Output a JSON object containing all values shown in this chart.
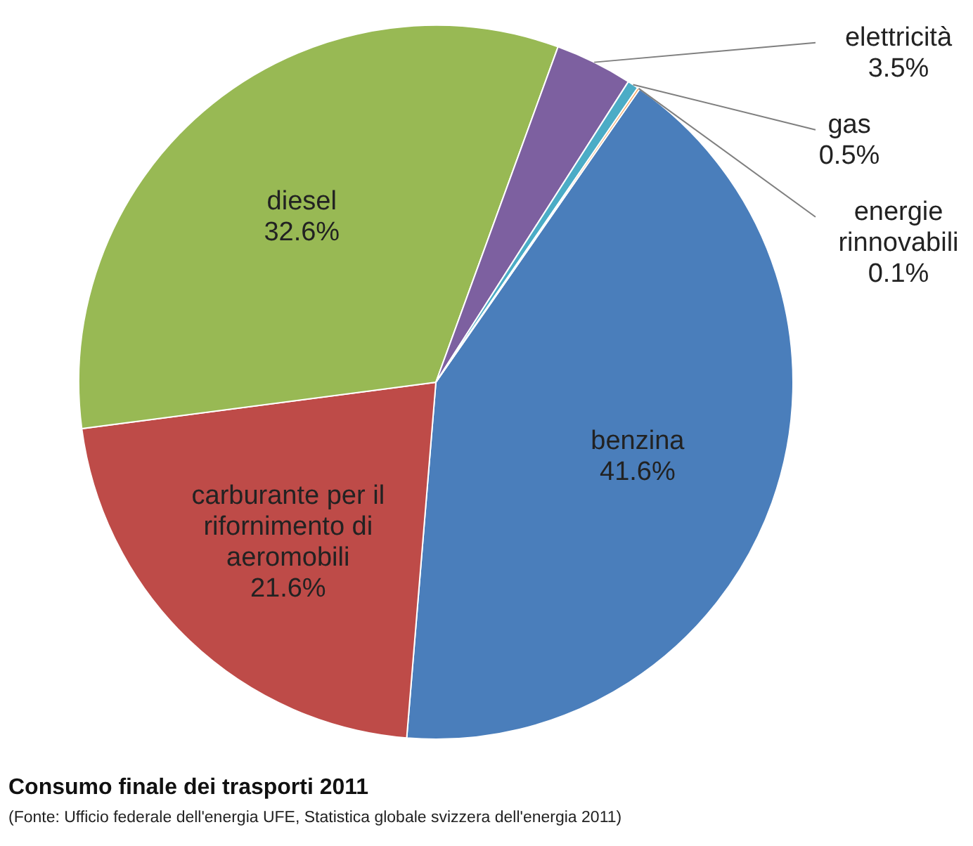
{
  "chart_data": {
    "type": "pie",
    "title": "Consumo finale dei trasporti 2011",
    "categories": [
      "benzina",
      "carburante per il rifornimento di aeromobili",
      "diesel",
      "elettricità",
      "gas",
      "energie rinnovabili"
    ],
    "values": [
      41.6,
      21.6,
      32.6,
      3.5,
      0.5,
      0.1
    ],
    "colors": [
      "#4a7ebb",
      "#be4b48",
      "#98b954",
      "#7d60a0",
      "#4bacc6",
      "#f79646"
    ],
    "value_labels": [
      "41.6%",
      "21.6%",
      "32.6%",
      "3.5%",
      "0.5%",
      "0.1%"
    ],
    "annotations": [
      "(Fonte: Ufficio federale dell'energia UFE, Statistica globale svizzera dell'energia 2011)"
    ]
  }
}
